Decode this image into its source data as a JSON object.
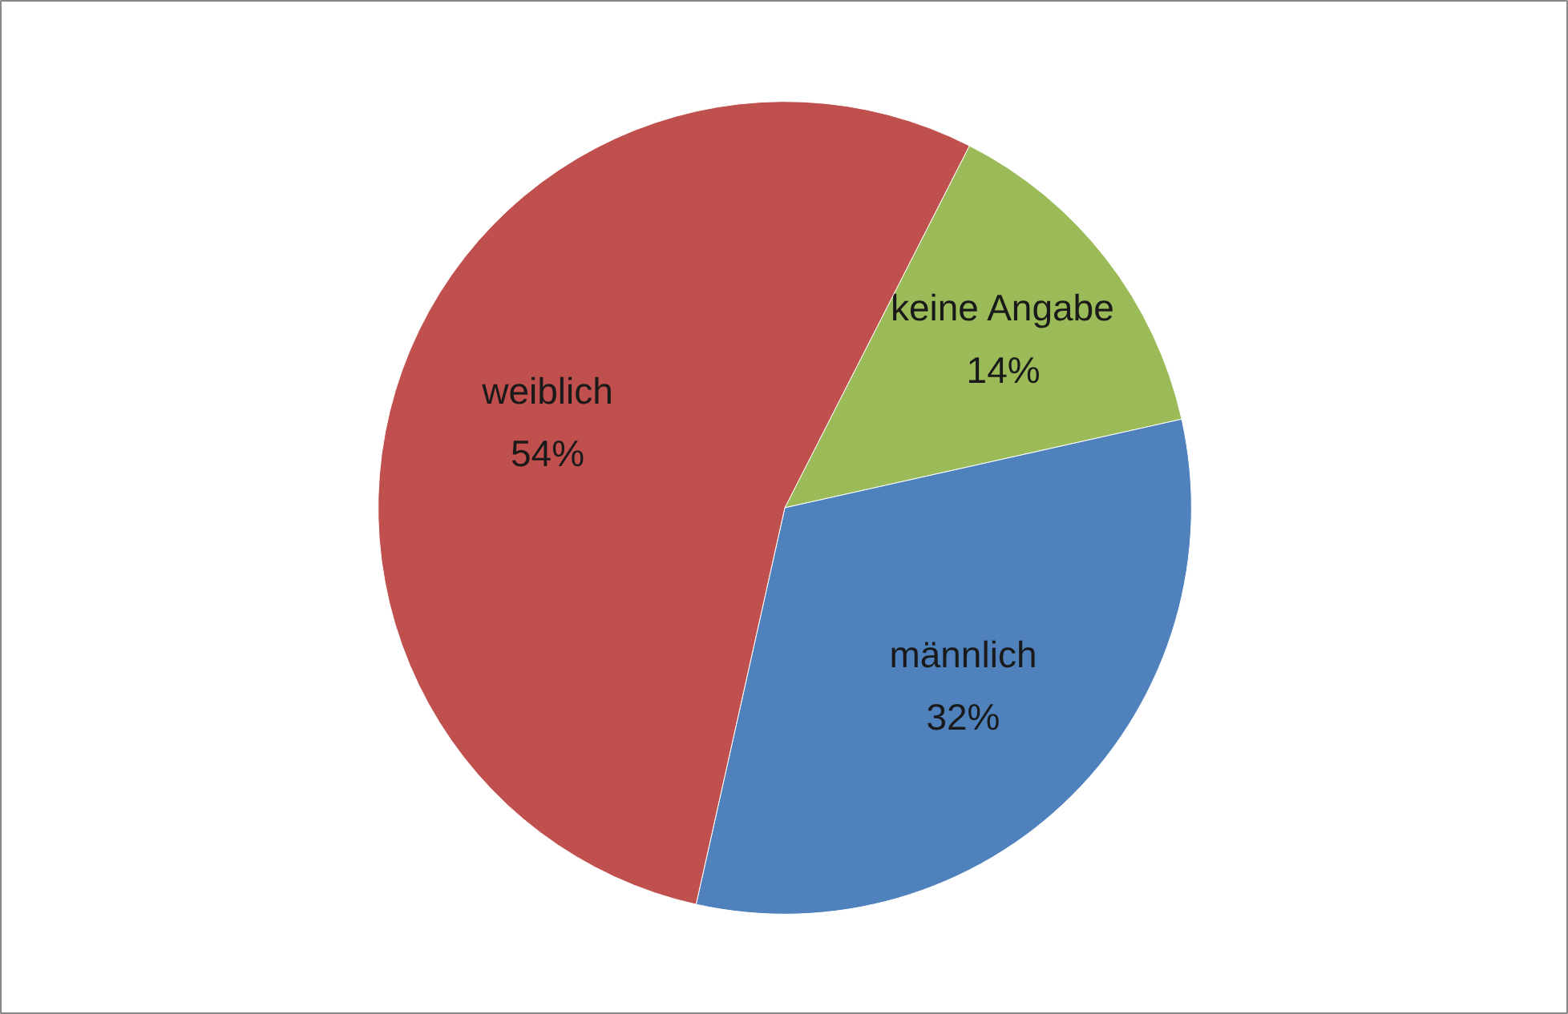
{
  "chart_data": {
    "type": "pie",
    "categories": [
      "keine Angabe",
      "männlich",
      "weiblich"
    ],
    "values": [
      14,
      32,
      54
    ],
    "colors": [
      "#9bbb59",
      "#4f81bd",
      "#c0504d"
    ],
    "value_labels": [
      "14%",
      "32%",
      "54%"
    ]
  }
}
